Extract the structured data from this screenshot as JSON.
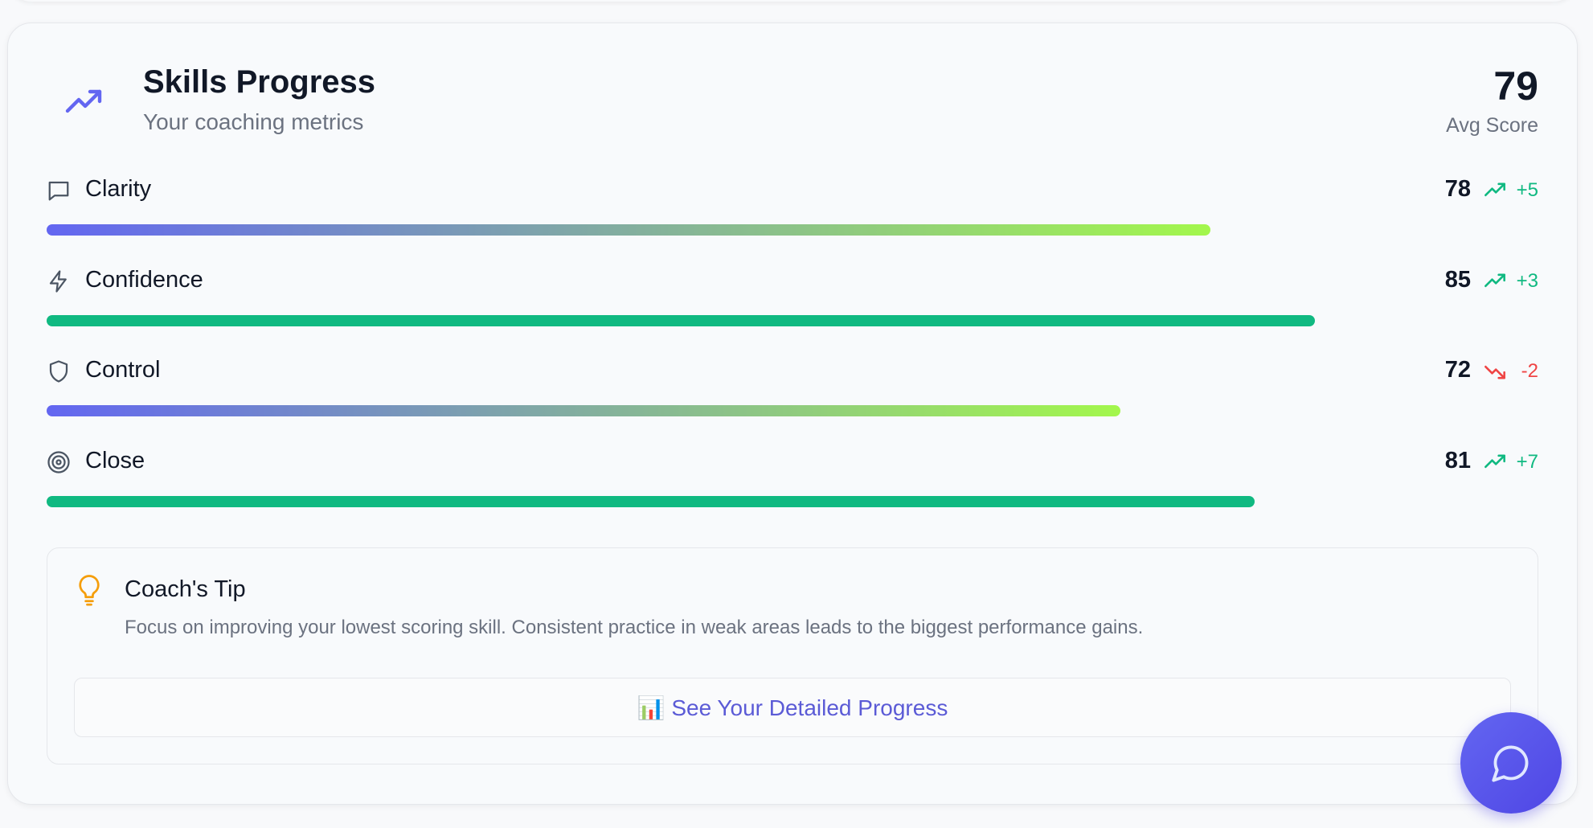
{
  "header": {
    "title": "Skills Progress",
    "subtitle": "Your coaching metrics",
    "avg_score": 79,
    "avg_label": "Avg Score"
  },
  "skills": {
    "xlim": [
      0,
      100
    ],
    "items": [
      {
        "name": "Clarity",
        "score": 78,
        "delta": "+5",
        "trend": "up",
        "bar_style": "gradient"
      },
      {
        "name": "Confidence",
        "score": 85,
        "delta": "+3",
        "trend": "up",
        "bar_style": "solid"
      },
      {
        "name": "Control",
        "score": 72,
        "delta": "-2",
        "trend": "down",
        "bar_style": "gradient"
      },
      {
        "name": "Close",
        "score": 81,
        "delta": "+7",
        "trend": "up",
        "bar_style": "solid"
      }
    ]
  },
  "tip": {
    "title": "Coach's Tip",
    "text": "Focus on improving your lowest scoring skill. Consistent practice in weak areas leads to the biggest performance gains.",
    "button": "📊 See Your Detailed Progress"
  }
}
